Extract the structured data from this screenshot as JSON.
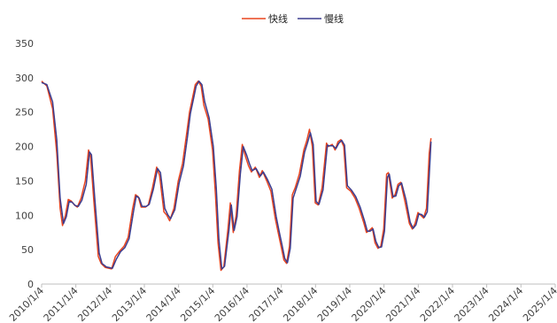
{
  "chart_data": {
    "type": "line",
    "title": "",
    "xlabel": "",
    "ylabel": "",
    "ylim": [
      0,
      350
    ],
    "yticks": [
      0,
      50,
      100,
      150,
      200,
      250,
      300,
      350
    ],
    "xlim": [
      "2010-01-04",
      "2025-01-04"
    ],
    "x_tick_labels": [
      "2010/1/4",
      "2011/1/4",
      "2012/1/4",
      "2013/1/4",
      "2014/1/4",
      "2015/1/4",
      "2016/1/4",
      "2017/1/4",
      "2018/1/4",
      "2019/1/4",
      "2020/1/4",
      "2021/1/4",
      "2022/1/4",
      "2023/1/4",
      "2024/1/4",
      "2025/1/4"
    ],
    "grid": false,
    "legend_position": "top-center",
    "series": [
      {
        "name": "快线",
        "color": "#e8451f",
        "points": [
          [
            "2010-01-04",
            295
          ],
          [
            "2010-03-01",
            288
          ],
          [
            "2010-05-01",
            255
          ],
          [
            "2010-06-15",
            190
          ],
          [
            "2010-07-20",
            110
          ],
          [
            "2010-08-15",
            85
          ],
          [
            "2010-09-15",
            100
          ],
          [
            "2010-10-15",
            123
          ],
          [
            "2010-11-15",
            121
          ],
          [
            "2010-12-20",
            115
          ],
          [
            "2011-01-20",
            112
          ],
          [
            "2011-03-01",
            125
          ],
          [
            "2011-04-15",
            150
          ],
          [
            "2011-05-20",
            195
          ],
          [
            "2011-06-10",
            185
          ],
          [
            "2011-07-15",
            120
          ],
          [
            "2011-09-01",
            40
          ],
          [
            "2011-10-01",
            30
          ],
          [
            "2011-11-15",
            24
          ],
          [
            "2012-01-20",
            22
          ],
          [
            "2012-03-01",
            40
          ],
          [
            "2012-04-15",
            48
          ],
          [
            "2012-06-01",
            55
          ],
          [
            "2012-07-15",
            68
          ],
          [
            "2012-09-01",
            110
          ],
          [
            "2012-10-01",
            130
          ],
          [
            "2012-11-01",
            127
          ],
          [
            "2012-12-01",
            112
          ],
          [
            "2013-01-15",
            112
          ],
          [
            "2013-02-15",
            115
          ],
          [
            "2013-04-01",
            140
          ],
          [
            "2013-05-15",
            170
          ],
          [
            "2013-06-15",
            158
          ],
          [
            "2013-08-01",
            105
          ],
          [
            "2013-09-01",
            100
          ],
          [
            "2013-10-01",
            92
          ],
          [
            "2013-11-15",
            110
          ],
          [
            "2014-01-01",
            150
          ],
          [
            "2014-02-15",
            175
          ],
          [
            "2014-04-01",
            220
          ],
          [
            "2014-05-01",
            250
          ],
          [
            "2014-06-01",
            270
          ],
          [
            "2014-07-01",
            290
          ],
          [
            "2014-08-01",
            295
          ],
          [
            "2014-09-01",
            288
          ],
          [
            "2014-10-01",
            260
          ],
          [
            "2014-11-15",
            240
          ],
          [
            "2015-01-01",
            195
          ],
          [
            "2015-02-01",
            130
          ],
          [
            "2015-03-01",
            60
          ],
          [
            "2015-04-01",
            20
          ],
          [
            "2015-05-01",
            25
          ],
          [
            "2015-06-15",
            80
          ],
          [
            "2015-07-10",
            118
          ],
          [
            "2015-08-10",
            75
          ],
          [
            "2015-09-10",
            100
          ],
          [
            "2015-10-15",
            165
          ],
          [
            "2015-11-15",
            203
          ],
          [
            "2015-12-20",
            185
          ],
          [
            "2016-01-20",
            172
          ],
          [
            "2016-02-20",
            163
          ],
          [
            "2016-04-01",
            170
          ],
          [
            "2016-05-15",
            155
          ],
          [
            "2016-06-15",
            165
          ],
          [
            "2016-08-01",
            150
          ],
          [
            "2016-09-15",
            135
          ],
          [
            "2016-11-01",
            95
          ],
          [
            "2016-12-01",
            75
          ],
          [
            "2017-01-01",
            55
          ],
          [
            "2017-02-01",
            35
          ],
          [
            "2017-03-01",
            30
          ],
          [
            "2017-04-01",
            55
          ],
          [
            "2017-05-01",
            130
          ],
          [
            "2017-06-01",
            140
          ],
          [
            "2017-07-15",
            160
          ],
          [
            "2017-09-01",
            195
          ],
          [
            "2017-10-01",
            208
          ],
          [
            "2017-11-01",
            225
          ],
          [
            "2017-12-01",
            200
          ],
          [
            "2018-01-01",
            118
          ],
          [
            "2018-02-01",
            115
          ],
          [
            "2018-03-15",
            140
          ],
          [
            "2018-05-01",
            205
          ],
          [
            "2018-05-20",
            200
          ],
          [
            "2018-07-01",
            203
          ],
          [
            "2018-08-01",
            195
          ],
          [
            "2018-09-01",
            207
          ],
          [
            "2018-10-01",
            210
          ],
          [
            "2018-11-01",
            200
          ],
          [
            "2018-12-01",
            140
          ],
          [
            "2019-01-15",
            135
          ],
          [
            "2019-03-01",
            125
          ],
          [
            "2019-04-15",
            110
          ],
          [
            "2019-06-01",
            90
          ],
          [
            "2019-07-01",
            75
          ],
          [
            "2019-08-01",
            78
          ],
          [
            "2019-09-01",
            82
          ],
          [
            "2019-10-01",
            60
          ],
          [
            "2019-11-01",
            52
          ],
          [
            "2019-12-01",
            55
          ],
          [
            "2020-01-01",
            80
          ],
          [
            "2020-02-01",
            160
          ],
          [
            "2020-02-20",
            162
          ],
          [
            "2020-04-01",
            125
          ],
          [
            "2020-05-01",
            130
          ],
          [
            "2020-06-01",
            145
          ],
          [
            "2020-07-01",
            148
          ],
          [
            "2020-08-15",
            120
          ],
          [
            "2020-10-01",
            88
          ],
          [
            "2020-11-01",
            80
          ],
          [
            "2020-12-01",
            88
          ],
          [
            "2021-01-01",
            104
          ],
          [
            "2021-02-01",
            100
          ],
          [
            "2021-03-01",
            96
          ],
          [
            "2021-04-01",
            110
          ],
          [
            "2021-05-01",
            190
          ],
          [
            "2021-05-20",
            212
          ]
        ]
      },
      {
        "name": "慢线",
        "color": "#3c3d8f",
        "points": [
          [
            "2010-01-04",
            293
          ],
          [
            "2010-03-01",
            290
          ],
          [
            "2010-05-01",
            265
          ],
          [
            "2010-06-15",
            210
          ],
          [
            "2010-07-20",
            125
          ],
          [
            "2010-08-25",
            88
          ],
          [
            "2010-09-25",
            98
          ],
          [
            "2010-10-25",
            120
          ],
          [
            "2010-11-25",
            119
          ],
          [
            "2010-12-30",
            114
          ],
          [
            "2011-01-30",
            113
          ],
          [
            "2011-03-10",
            122
          ],
          [
            "2011-04-25",
            145
          ],
          [
            "2011-05-30",
            192
          ],
          [
            "2011-06-20",
            188
          ],
          [
            "2011-07-25",
            125
          ],
          [
            "2011-09-10",
            45
          ],
          [
            "2011-10-10",
            30
          ],
          [
            "2011-11-25",
            25
          ],
          [
            "2012-01-30",
            23
          ],
          [
            "2012-03-10",
            36
          ],
          [
            "2012-04-25",
            47
          ],
          [
            "2012-06-10",
            53
          ],
          [
            "2012-07-25",
            66
          ],
          [
            "2012-09-10",
            105
          ],
          [
            "2012-10-10",
            128
          ],
          [
            "2012-11-10",
            125
          ],
          [
            "2012-12-10",
            113
          ],
          [
            "2013-01-25",
            113
          ],
          [
            "2013-02-25",
            116
          ],
          [
            "2013-04-10",
            138
          ],
          [
            "2013-05-25",
            168
          ],
          [
            "2013-06-25",
            162
          ],
          [
            "2013-08-10",
            110
          ],
          [
            "2013-09-10",
            101
          ],
          [
            "2013-10-10",
            95
          ],
          [
            "2013-11-25",
            108
          ],
          [
            "2014-01-10",
            147
          ],
          [
            "2014-02-25",
            172
          ],
          [
            "2014-04-10",
            215
          ],
          [
            "2014-05-10",
            248
          ],
          [
            "2014-06-10",
            268
          ],
          [
            "2014-07-10",
            288
          ],
          [
            "2014-08-10",
            295
          ],
          [
            "2014-09-10",
            290
          ],
          [
            "2014-10-10",
            265
          ],
          [
            "2014-11-25",
            242
          ],
          [
            "2015-01-10",
            200
          ],
          [
            "2015-02-10",
            140
          ],
          [
            "2015-03-10",
            65
          ],
          [
            "2015-04-10",
            22
          ],
          [
            "2015-05-10",
            26
          ],
          [
            "2015-06-25",
            78
          ],
          [
            "2015-07-20",
            115
          ],
          [
            "2015-08-20",
            78
          ],
          [
            "2015-09-20",
            98
          ],
          [
            "2015-10-25",
            160
          ],
          [
            "2015-11-25",
            200
          ],
          [
            "2015-12-30",
            188
          ],
          [
            "2016-01-30",
            175
          ],
          [
            "2016-02-28",
            165
          ],
          [
            "2016-04-10",
            168
          ],
          [
            "2016-05-25",
            157
          ],
          [
            "2016-06-25",
            163
          ],
          [
            "2016-08-10",
            152
          ],
          [
            "2016-09-25",
            138
          ],
          [
            "2016-11-10",
            98
          ],
          [
            "2016-12-10",
            78
          ],
          [
            "2017-01-10",
            58
          ],
          [
            "2017-02-10",
            37
          ],
          [
            "2017-03-10",
            31
          ],
          [
            "2017-04-10",
            52
          ],
          [
            "2017-05-10",
            125
          ],
          [
            "2017-06-10",
            138
          ],
          [
            "2017-07-25",
            157
          ],
          [
            "2017-09-10",
            192
          ],
          [
            "2017-10-10",
            205
          ],
          [
            "2017-11-10",
            220
          ],
          [
            "2017-12-10",
            203
          ],
          [
            "2018-01-10",
            120
          ],
          [
            "2018-02-10",
            116
          ],
          [
            "2018-03-25",
            137
          ],
          [
            "2018-05-10",
            202
          ],
          [
            "2018-05-30",
            201
          ],
          [
            "2018-07-10",
            201
          ],
          [
            "2018-08-10",
            197
          ],
          [
            "2018-09-10",
            205
          ],
          [
            "2018-10-10",
            209
          ],
          [
            "2018-11-10",
            202
          ],
          [
            "2018-12-10",
            143
          ],
          [
            "2019-01-25",
            136
          ],
          [
            "2019-03-10",
            127
          ],
          [
            "2019-04-25",
            112
          ],
          [
            "2019-06-10",
            92
          ],
          [
            "2019-07-10",
            77
          ],
          [
            "2019-08-10",
            77
          ],
          [
            "2019-09-10",
            80
          ],
          [
            "2019-10-10",
            62
          ],
          [
            "2019-11-10",
            53
          ],
          [
            "2019-12-10",
            54
          ],
          [
            "2020-01-10",
            77
          ],
          [
            "2020-02-10",
            155
          ],
          [
            "2020-03-01",
            160
          ],
          [
            "2020-04-10",
            127
          ],
          [
            "2020-05-10",
            128
          ],
          [
            "2020-06-10",
            143
          ],
          [
            "2020-07-10",
            147
          ],
          [
            "2020-08-25",
            123
          ],
          [
            "2020-10-10",
            90
          ],
          [
            "2020-11-10",
            81
          ],
          [
            "2020-12-10",
            86
          ],
          [
            "2021-01-10",
            102
          ],
          [
            "2021-02-10",
            101
          ],
          [
            "2021-03-10",
            97
          ],
          [
            "2021-04-10",
            105
          ],
          [
            "2021-05-10",
            182
          ],
          [
            "2021-05-20",
            207
          ]
        ]
      }
    ]
  }
}
